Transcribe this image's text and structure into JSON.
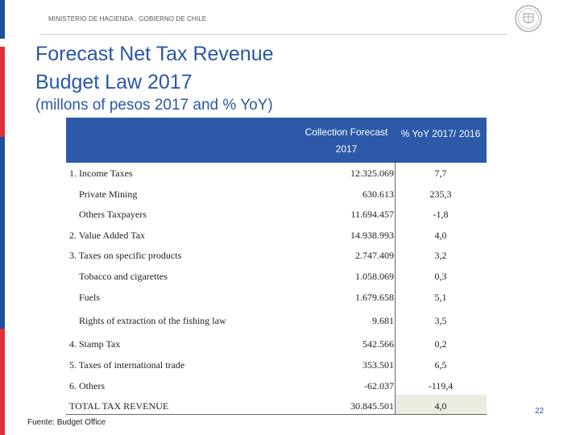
{
  "header": {
    "ministry": "MINISTERIO DE HACIENDA . GOBIERNO DE CHILE"
  },
  "title": {
    "line1": "Forecast Net Tax Revenue",
    "line2": "Budget Law 2017",
    "subtitle": "(millons of pesos 2017 and % YoY)"
  },
  "table": {
    "col_collection": "Collection Forecast 2017",
    "col_yoy": "% YoY 2017/ 2016",
    "rows": [
      {
        "label": "1. Income Taxes",
        "value": "12.325.069",
        "pct": "7,7"
      },
      {
        "label": "Private Mining",
        "value": "630.613",
        "pct": "235,3"
      },
      {
        "label": "Others Taxpayers",
        "value": "11.694.457",
        "pct": "-1,8"
      },
      {
        "label": "2. Value Added Tax",
        "value": "14.938.993",
        "pct": "4,0"
      },
      {
        "label": "3. Taxes on specific products",
        "value": "2.747.409",
        "pct": "3,2"
      },
      {
        "label": "Tobacco and cigarettes",
        "value": "1.058.069",
        "pct": "0,3"
      },
      {
        "label": "Fuels",
        "value": "1.679.658",
        "pct": "5,1"
      },
      {
        "label": "Rights of extraction of the fishing law",
        "value": "9.681",
        "pct": "3,5"
      },
      {
        "label": "4. Stamp Tax",
        "value": "542.566",
        "pct": "0,2"
      },
      {
        "label": "5. Taxes of international trade",
        "value": "353.501",
        "pct": "6,5"
      },
      {
        "label": "6. Others",
        "value": "-62.037",
        "pct": "-119,4"
      },
      {
        "label": "TOTAL TAX REVENUE",
        "value": "30.845.501",
        "pct": "4,0"
      }
    ]
  },
  "footer": {
    "source": "Fuente: Budget Office",
    "page": "22"
  },
  "colors": {
    "accent_blue": "#2a57a6",
    "header_fill": "#2d5aa8",
    "edge_red": "#e0303a"
  }
}
